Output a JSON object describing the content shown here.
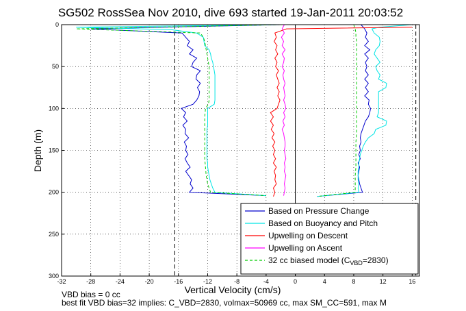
{
  "chart_data": {
    "type": "line",
    "title": "SG502 RossSea Nov 2010, dive 693 started 19-Jan-2011 20:03:52",
    "xlabel": "Vertical Velocity (cm/s)",
    "ylabel": "Depth (m)",
    "xlim": [
      -32,
      17
    ],
    "ylim": [
      0,
      300
    ],
    "y_reversed": true,
    "grid": true,
    "legend_position": "lower-right",
    "x_ticks": [
      "-32",
      "-28",
      "-24",
      "-20",
      "-16",
      "-12",
      "-8",
      "-4",
      "0",
      "4",
      "8",
      "12",
      "16"
    ],
    "x_tick_values": [
      -32,
      -28,
      -24,
      -20,
      -16,
      -12,
      -8,
      -4,
      0,
      4,
      8,
      12,
      16
    ],
    "y_ticks": [
      "0",
      "50",
      "100",
      "150",
      "200",
      "250",
      "300"
    ],
    "y_tick_values": [
      0,
      50,
      100,
      150,
      200,
      250,
      300
    ],
    "vertical_dashed_lines": [
      -16.5,
      0,
      16.5
    ],
    "series": [
      {
        "name": "Based on Pressure Change",
        "color": "#0000cc",
        "style": "solid",
        "descent": {
          "depth": [
            0,
            5,
            10,
            15,
            20,
            25,
            30,
            35,
            40,
            45,
            50,
            55,
            60,
            65,
            70,
            75,
            80,
            85,
            90,
            95,
            100,
            105,
            110,
            115,
            120,
            125,
            130,
            135,
            140,
            145,
            150,
            155,
            160,
            165,
            170,
            175,
            180,
            185,
            190,
            195,
            200,
            204
          ],
          "velocity": [
            -2,
            -28,
            -15.5,
            -15.0,
            -14.5,
            -14.8,
            -14.0,
            -14.5,
            -13.5,
            -14.0,
            -14.2,
            -13.0,
            -13.5,
            -13.6,
            -13.0,
            -13.4,
            -13.1,
            -13.2,
            -13.5,
            -14,
            -15.6,
            -15.0,
            -15.3,
            -14.8,
            -15.4,
            -15.0,
            -15.1,
            -14.6,
            -15.2,
            -14.9,
            -15.0,
            -14.7,
            -15.1,
            -14.8,
            -14.4,
            -15.0,
            -14.6,
            -14.2,
            -14.4,
            -14.0,
            -14.5,
            -4
          ]
        },
        "ascent": {
          "depth": [
            0,
            5,
            10,
            15,
            20,
            25,
            30,
            35,
            40,
            45,
            50,
            55,
            60,
            65,
            70,
            75,
            80,
            85,
            90,
            95,
            100,
            105,
            110,
            115,
            120,
            125,
            130,
            135,
            140,
            145,
            150,
            155,
            160,
            165,
            170,
            175,
            180,
            185,
            190,
            195,
            200,
            205
          ],
          "velocity": [
            9.0,
            9.5,
            9.8,
            9.6,
            10.0,
            9.5,
            10.2,
            9.5,
            10.0,
            9.6,
            9.8,
            9.6,
            10.0,
            9.5,
            10.0,
            9.6,
            10.0,
            9.5,
            10.1,
            10.0,
            10.3,
            10.2,
            10.0,
            9.6,
            9.4,
            9.2,
            9.0,
            8.9,
            9.0,
            8.8,
            8.9,
            8.7,
            8.9,
            8.6,
            8.8,
            8.7,
            8.6,
            8.7,
            8.8,
            9.0,
            9.2,
            3.0
          ]
        }
      },
      {
        "name": "Based on Buoyancy and Pitch",
        "color": "#00e5e5",
        "style": "solid",
        "descent": {
          "depth": [
            0,
            3,
            6,
            10,
            15,
            20,
            25,
            30,
            35,
            40,
            45,
            50,
            55,
            60,
            65,
            70,
            75,
            80,
            85,
            90,
            95,
            100,
            105,
            110,
            115,
            120,
            125,
            130,
            135,
            140,
            145,
            150,
            155,
            160,
            165,
            170,
            175,
            180,
            185,
            190,
            195,
            200,
            204
          ],
          "velocity": [
            -2,
            -30,
            -17,
            -13.5,
            -12.6,
            -12.5,
            -12.4,
            -11.8,
            -11.6,
            -11.5,
            -11.3,
            -11.2,
            -11.1,
            -11.0,
            -11.0,
            -11.0,
            -11.0,
            -11.0,
            -11.0,
            -11.0,
            -11.1,
            -12.0,
            -12.0,
            -12.0,
            -12.0,
            -12.0,
            -12.1,
            -12.1,
            -12.1,
            -12.1,
            -12.1,
            -12.1,
            -12.1,
            -12.1,
            -12.0,
            -12.0,
            -11.9,
            -11.8,
            -11.7,
            -11.5,
            -11.3,
            -11.0,
            -4
          ]
        },
        "ascent": {
          "depth": [
            0,
            3,
            5,
            10,
            15,
            20,
            25,
            30,
            35,
            40,
            45,
            50,
            55,
            60,
            65,
            70,
            75,
            80,
            85,
            90,
            95,
            100,
            105,
            110,
            115,
            120,
            125,
            130,
            135,
            140,
            145,
            150,
            155,
            160,
            165,
            170,
            175,
            180,
            185,
            190,
            195,
            200,
            205
          ],
          "velocity": [
            16,
            11.5,
            10.5,
            10.8,
            11.5,
            11.6,
            11.5,
            11.0,
            10.8,
            11.2,
            11.6,
            11.0,
            11.2,
            11.6,
            11.4,
            12.5,
            12.4,
            11.4,
            11.4,
            11.4,
            11.4,
            11.4,
            11.4,
            11.2,
            12.5,
            12.4,
            11.0,
            10.8,
            10.0,
            9.6,
            9.3,
            9.1,
            8.9,
            8.8,
            8.7,
            8.7,
            8.6,
            8.6,
            8.6,
            8.7,
            8.6,
            8.7,
            3.0
          ]
        }
      },
      {
        "name": "Upwelling on Descent",
        "color": "#ff0000",
        "style": "solid",
        "depth": [
          3,
          5,
          10,
          15,
          20,
          25,
          30,
          35,
          40,
          45,
          50,
          55,
          60,
          65,
          70,
          75,
          80,
          85,
          90,
          95,
          100,
          105,
          110,
          115,
          120,
          125,
          130,
          135,
          140,
          145,
          150,
          155,
          160,
          165,
          170,
          175,
          180,
          185,
          190,
          195,
          200,
          205
        ],
        "velocity": [
          16,
          -1.2,
          -2.8,
          -2.6,
          -2.9,
          -2.5,
          -2.7,
          -2.4,
          -2.8,
          -2.5,
          -2.7,
          -2.3,
          -2.6,
          -2.4,
          -2.2,
          -2.5,
          -2.2,
          -2.4,
          -2.1,
          -2.3,
          -2.5,
          -3.4,
          -3.0,
          -3.4,
          -3.0,
          -3.3,
          -2.9,
          -3.2,
          -2.8,
          -3.1,
          -2.8,
          -3.0,
          -2.7,
          -3.0,
          -2.6,
          -2.9,
          -2.7,
          -2.8,
          -2.6,
          -3.0,
          -2.8,
          -3.0
        ]
      },
      {
        "name": "Upwelling on Ascent",
        "color": "#ff00ff",
        "style": "solid",
        "depth": [
          0,
          5,
          10,
          15,
          20,
          25,
          30,
          35,
          40,
          45,
          50,
          55,
          60,
          65,
          70,
          75,
          80,
          85,
          90,
          95,
          100,
          105,
          110,
          115,
          120,
          125,
          130,
          135,
          140,
          145,
          150,
          155,
          160,
          165,
          170,
          175,
          180,
          185,
          190,
          195,
          200,
          204
        ],
        "velocity": [
          -1.5,
          -1.8,
          -1.5,
          -1.9,
          -1.6,
          -1.8,
          -1.4,
          -1.8,
          -1.5,
          -1.6,
          -1.8,
          -1.5,
          -1.7,
          -1.6,
          -1.4,
          -1.6,
          -1.5,
          -1.4,
          -1.6,
          -1.4,
          -1.3,
          -1.6,
          -1.4,
          -1.7,
          -1.5,
          -1.8,
          -1.6,
          -1.5,
          -1.4,
          -1.4,
          -1.5,
          -1.4,
          -1.3,
          -1.5,
          -1.4,
          -1.5,
          -1.3,
          -1.4,
          -1.5,
          -1.4,
          -1.5,
          -1.6
        ]
      },
      {
        "name": "32 cc biased model (C",
        "name_sub": "VBD",
        "name_tail": "=2830)",
        "color": "#00cc00",
        "style": "dashed",
        "descent": {
          "depth": [
            0,
            5,
            10,
            15,
            20,
            30,
            40,
            50,
            60,
            70,
            80,
            90,
            95,
            100,
            110,
            120,
            130,
            140,
            150,
            160,
            170,
            180,
            190,
            200,
            204
          ],
          "velocity": [
            -2,
            -30,
            -13.0,
            -12.6,
            -12.4,
            -12.2,
            -12.0,
            -11.8,
            -11.8,
            -11.8,
            -11.8,
            -11.8,
            -11.9,
            -12.3,
            -12.4,
            -12.4,
            -12.4,
            -12.4,
            -12.4,
            -12.4,
            -12.3,
            -12.2,
            -12.0,
            -11.6,
            -4
          ]
        },
        "ascent": {
          "depth": [
            0,
            5,
            10,
            15,
            20,
            30,
            40,
            50,
            60,
            70,
            80,
            90,
            100,
            110,
            120,
            130,
            140,
            150,
            160,
            170,
            180,
            190,
            200,
            205
          ],
          "velocity": [
            8.0,
            8.2,
            8.3,
            8.3,
            8.4,
            8.4,
            8.4,
            8.4,
            8.4,
            8.4,
            8.4,
            8.4,
            8.4,
            8.4,
            8.4,
            8.4,
            8.3,
            8.3,
            8.3,
            8.3,
            8.2,
            8.2,
            8.2,
            3.0
          ]
        }
      }
    ],
    "annotations": [
      "VBD bias = 0 cc",
      "best fit VBD bias=32 implies: C_VBD=2830, volmax=50969 cc, max SM_CC=591, max M"
    ]
  }
}
